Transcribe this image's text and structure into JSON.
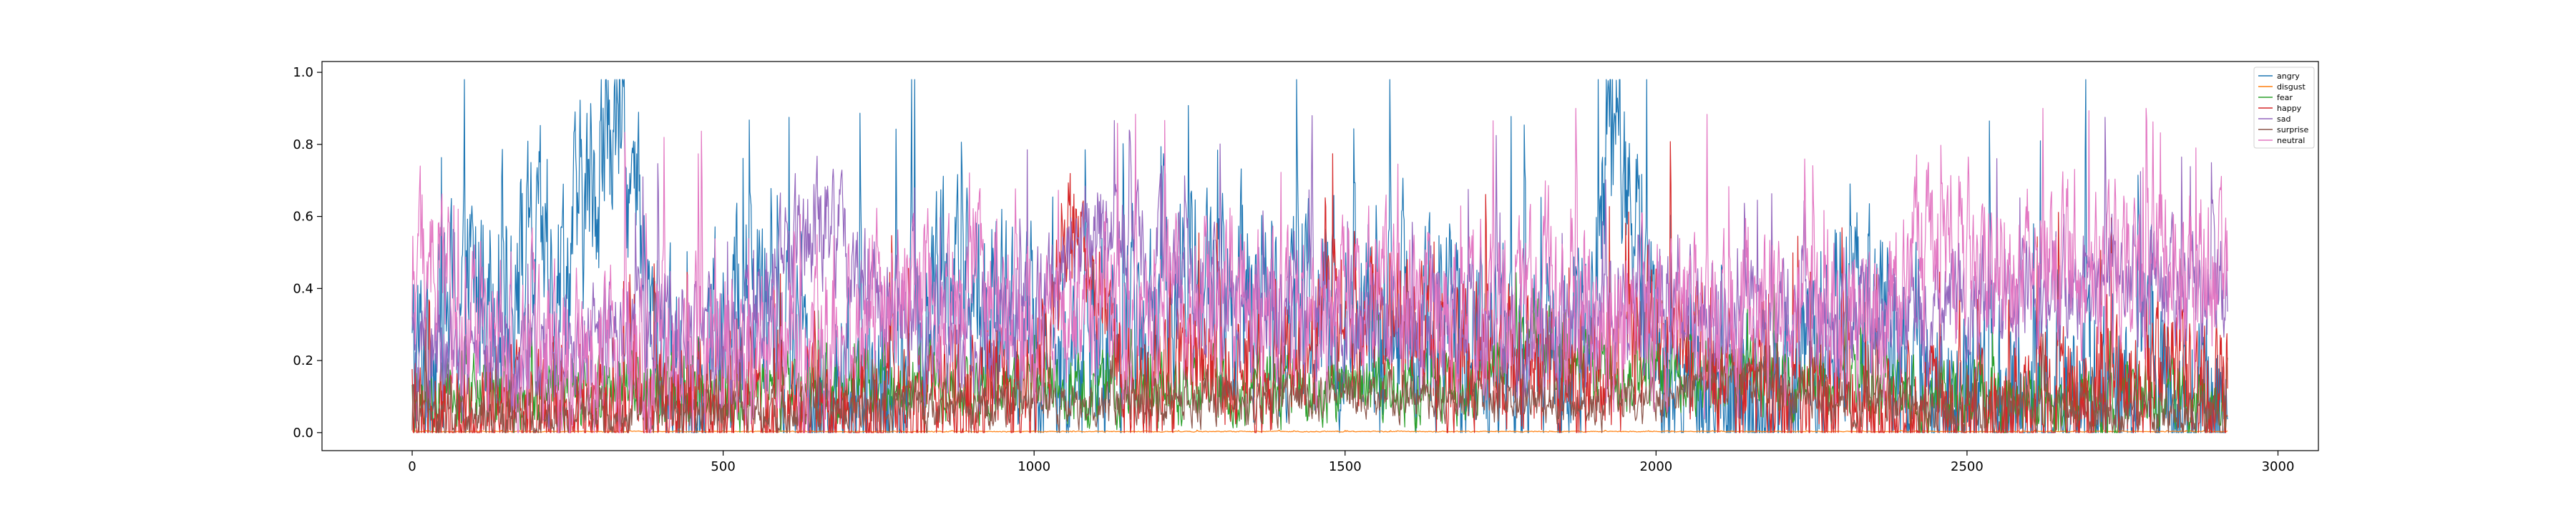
{
  "chart_data": {
    "type": "line",
    "title": "",
    "xlabel": "",
    "ylabel": "",
    "xlim": [
      -145,
      3065
    ],
    "ylim": [
      -0.05,
      1.03
    ],
    "xticks": [
      0,
      500,
      1000,
      1500,
      2000,
      2500,
      3000
    ],
    "yticks": [
      0.0,
      0.2,
      0.4,
      0.6,
      0.8,
      1.0
    ],
    "xtick_labels": [
      "0",
      "500",
      "1000",
      "1500",
      "2000",
      "2500",
      "3000"
    ],
    "ytick_labels": [
      "0.0",
      "0.2",
      "0.4",
      "0.6",
      "0.8",
      "1.0"
    ],
    "grid": false,
    "legend_position": "top-right",
    "n_points": 2920,
    "series": [
      {
        "name": "angry",
        "color": "#1f77b4",
        "anchors": [
          [
            0,
            0.18
          ],
          [
            60,
            0.35
          ],
          [
            150,
            0.45
          ],
          [
            250,
            0.5
          ],
          [
            330,
            0.9
          ],
          [
            380,
            0.3
          ],
          [
            450,
            0.06
          ],
          [
            550,
            0.45
          ],
          [
            650,
            0.05
          ],
          [
            750,
            0.05
          ],
          [
            850,
            0.45
          ],
          [
            950,
            0.3
          ],
          [
            1050,
            0.15
          ],
          [
            1150,
            0.3
          ],
          [
            1250,
            0.45
          ],
          [
            1350,
            0.35
          ],
          [
            1450,
            0.3
          ],
          [
            1550,
            0.35
          ],
          [
            1650,
            0.3
          ],
          [
            1750,
            0.2
          ],
          [
            1850,
            0.12
          ],
          [
            1940,
            0.8
          ],
          [
            2000,
            0.25
          ],
          [
            2100,
            0.05
          ],
          [
            2200,
            0.02
          ],
          [
            2300,
            0.35
          ],
          [
            2400,
            0.2
          ],
          [
            2500,
            0.05
          ],
          [
            2600,
            0.05
          ],
          [
            2700,
            0.05
          ],
          [
            2800,
            0.1
          ],
          [
            2920,
            0.05
          ]
        ],
        "spread": 0.45,
        "min": 0.0,
        "max": 0.98
      },
      {
        "name": "disgust",
        "color": "#ff7f0e",
        "anchors": [
          [
            0,
            0.003
          ],
          [
            2920,
            0.003
          ]
        ],
        "spread": 0.002,
        "min": 0.0,
        "max": 0.01
      },
      {
        "name": "fear",
        "color": "#2ca02c",
        "anchors": [
          [
            0,
            0.08
          ],
          [
            100,
            0.1
          ],
          [
            300,
            0.12
          ],
          [
            500,
            0.1
          ],
          [
            600,
            0.12
          ],
          [
            750,
            0.15
          ],
          [
            900,
            0.12
          ],
          [
            1100,
            0.12
          ],
          [
            1300,
            0.12
          ],
          [
            1500,
            0.12
          ],
          [
            1700,
            0.12
          ],
          [
            1800,
            0.3
          ],
          [
            1900,
            0.15
          ],
          [
            2100,
            0.14
          ],
          [
            2200,
            0.15
          ],
          [
            2400,
            0.1
          ],
          [
            2600,
            0.08
          ],
          [
            2800,
            0.08
          ],
          [
            2920,
            0.1
          ]
        ],
        "spread": 0.15,
        "min": 0.0,
        "max": 0.45
      },
      {
        "name": "happy",
        "color": "#d62728",
        "anchors": [
          [
            0,
            0.05
          ],
          [
            200,
            0.05
          ],
          [
            400,
            0.1
          ],
          [
            500,
            0.05
          ],
          [
            700,
            0.03
          ],
          [
            1000,
            0.1
          ],
          [
            1060,
            0.55
          ],
          [
            1150,
            0.1
          ],
          [
            1400,
            0.2
          ],
          [
            1500,
            0.35
          ],
          [
            1700,
            0.2
          ],
          [
            1900,
            0.15
          ],
          [
            2000,
            0.3
          ],
          [
            2200,
            0.05
          ],
          [
            2400,
            0.03
          ],
          [
            2600,
            0.03
          ],
          [
            2800,
            0.15
          ],
          [
            2920,
            0.1
          ]
        ],
        "spread": 0.3,
        "min": 0.0,
        "max": 0.97
      },
      {
        "name": "sad",
        "color": "#9467bd",
        "anchors": [
          [
            0,
            0.2
          ],
          [
            200,
            0.2
          ],
          [
            400,
            0.3
          ],
          [
            500,
            0.2
          ],
          [
            650,
            0.6
          ],
          [
            720,
            0.45
          ],
          [
            800,
            0.25
          ],
          [
            1000,
            0.3
          ],
          [
            1120,
            0.6
          ],
          [
            1300,
            0.35
          ],
          [
            1500,
            0.3
          ],
          [
            1700,
            0.3
          ],
          [
            1850,
            0.25
          ],
          [
            2000,
            0.35
          ],
          [
            2200,
            0.3
          ],
          [
            2400,
            0.3
          ],
          [
            2600,
            0.4
          ],
          [
            2800,
            0.4
          ],
          [
            2920,
            0.4
          ]
        ],
        "spread": 0.25,
        "min": 0.0,
        "max": 0.88
      },
      {
        "name": "surprise",
        "color": "#8c564b",
        "anchors": [
          [
            0,
            0.05
          ],
          [
            500,
            0.05
          ],
          [
            1000,
            0.08
          ],
          [
            1500,
            0.1
          ],
          [
            2000,
            0.08
          ],
          [
            2100,
            0.15
          ],
          [
            2300,
            0.1
          ],
          [
            2500,
            0.06
          ],
          [
            2920,
            0.05
          ]
        ],
        "spread": 0.1,
        "min": 0.0,
        "max": 0.3
      },
      {
        "name": "neutral",
        "color": "#e377c2",
        "anchors": [
          [
            0,
            0.45
          ],
          [
            100,
            0.3
          ],
          [
            250,
            0.2
          ],
          [
            400,
            0.2
          ],
          [
            500,
            0.25
          ],
          [
            600,
            0.2
          ],
          [
            700,
            0.3
          ],
          [
            800,
            0.4
          ],
          [
            900,
            0.4
          ],
          [
            1000,
            0.3
          ],
          [
            1200,
            0.35
          ],
          [
            1400,
            0.35
          ],
          [
            1600,
            0.35
          ],
          [
            1800,
            0.3
          ],
          [
            2000,
            0.3
          ],
          [
            2200,
            0.35
          ],
          [
            2300,
            0.3
          ],
          [
            2450,
            0.55
          ],
          [
            2600,
            0.45
          ],
          [
            2800,
            0.45
          ],
          [
            2920,
            0.4
          ]
        ],
        "spread": 0.35,
        "min": 0.0,
        "max": 0.9
      }
    ]
  }
}
